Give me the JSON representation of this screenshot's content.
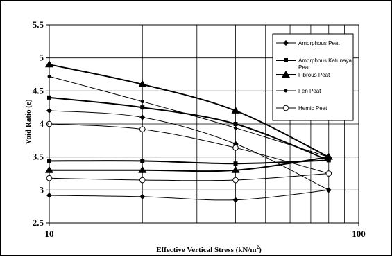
{
  "chart_data": {
    "type": "line",
    "xlabel": "Effective Vertical Stress (kN/m",
    "xlabel_superscript": "2",
    "xlabel_suffix": ")",
    "ylabel": "Void Ratio (e)",
    "x_scale": "log",
    "xlim": [
      10,
      100
    ],
    "ylim": [
      2.5,
      5.5
    ],
    "x_ticks": [
      "10",
      "100"
    ],
    "y_ticks": [
      "2.5",
      "3",
      "3.5",
      "4",
      "4.5",
      "5",
      "5.5"
    ],
    "grid": true,
    "legend_position": "top-right",
    "series": [
      {
        "name": "Amorphous Peat",
        "marker": "diamond",
        "line_width": 1,
        "loading": [
          [
            10,
            4.2
          ],
          [
            20,
            4.1
          ],
          [
            40,
            3.7
          ],
          [
            80,
            3.0
          ]
        ],
        "unloading": [
          [
            80,
            3.0
          ],
          [
            40,
            2.85
          ],
          [
            20,
            2.9
          ],
          [
            10,
            2.92
          ]
        ]
      },
      {
        "name": "Amorphous Katunaya Peat",
        "marker": "square",
        "line_width": 2,
        "loading": [
          [
            10,
            4.4
          ],
          [
            20,
            4.25
          ],
          [
            40,
            4.0
          ],
          [
            80,
            3.45
          ]
        ],
        "unloading": [
          [
            80,
            3.45
          ],
          [
            40,
            3.4
          ],
          [
            20,
            3.44
          ],
          [
            10,
            3.44
          ]
        ]
      },
      {
        "name": "Fibrous Peat",
        "marker": "triangle",
        "line_width": 2,
        "loading": [
          [
            10,
            4.9
          ],
          [
            20,
            4.6
          ],
          [
            40,
            4.2
          ],
          [
            80,
            3.5
          ]
        ],
        "unloading": [
          [
            80,
            3.5
          ],
          [
            40,
            3.3
          ],
          [
            20,
            3.3
          ],
          [
            10,
            3.3
          ]
        ]
      },
      {
        "name": "Fen Peat",
        "marker": "dot",
        "line_width": 1,
        "loading": [
          [
            10,
            4.72
          ],
          [
            20,
            4.34
          ],
          [
            40,
            3.94
          ],
          [
            80,
            3.5
          ]
        ],
        "unloading": []
      },
      {
        "name": "Hemic Peat",
        "marker": "circle-open",
        "line_width": 1,
        "loading": [
          [
            10,
            4.0
          ],
          [
            20,
            3.92
          ],
          [
            40,
            3.64
          ],
          [
            80,
            3.25
          ]
        ],
        "unloading": [
          [
            80,
            3.25
          ],
          [
            40,
            3.15
          ],
          [
            20,
            3.15
          ],
          [
            10,
            3.18
          ]
        ]
      }
    ]
  }
}
